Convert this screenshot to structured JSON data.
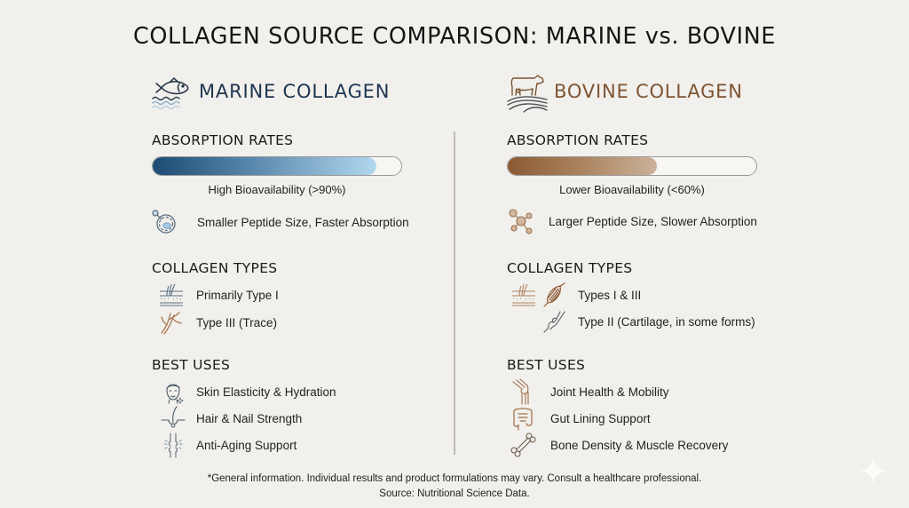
{
  "title": "COLLAGEN SOURCE COMPARISON: MARINE vs. BOVINE",
  "colors": {
    "background": "#f1f0ec",
    "marine_accent": "#1d4a72",
    "marine_light": "#b2d8ef",
    "bovine_accent": "#8a5a33",
    "bovine_light": "#cbb29a",
    "divider": "#bdbbb6"
  },
  "marine": {
    "name": "MARINE COLLAGEN",
    "icon": "fish-waves-icon",
    "absorption": {
      "heading": "ABSORPTION RATES",
      "bar_percent": 90,
      "caption": "High Bioavailability (>90%)",
      "detail_icon": "peptide-cell-icon",
      "detail": "Smaller Peptide Size, Faster Absorption"
    },
    "types": {
      "heading": "COLLAGEN TYPES",
      "items": [
        {
          "icon": "skin-layers-icon",
          "label": "Primarily Type I"
        },
        {
          "icon": "blood-vessel-icon",
          "label": "Type III (Trace)"
        }
      ]
    },
    "uses": {
      "heading": "BEST USES",
      "items": [
        {
          "icon": "face-icon",
          "label": "Skin Elasticity & Hydration"
        },
        {
          "icon": "hair-follicle-icon",
          "label": "Hair & Nail Strength"
        },
        {
          "icon": "joint-sparkle-icon",
          "label": "Anti-Aging Support"
        }
      ]
    }
  },
  "bovine": {
    "name": "BOVINE COLLAGEN",
    "icon": "cow-field-icon",
    "absorption": {
      "heading": "ABSORPTION RATES",
      "bar_percent": 60,
      "caption": "Lower Bioavailability (<60%)",
      "detail_icon": "molecule-icon",
      "detail": "Larger Peptide Size, Slower Absorption"
    },
    "types": {
      "heading": "COLLAGEN TYPES",
      "items": [
        {
          "icon": "skin-muscle-icon",
          "label": "Types I & III"
        },
        {
          "icon": "cartilage-icon",
          "label": "Type II (Cartilage, in some forms)"
        }
      ]
    },
    "uses": {
      "heading": "BEST USES",
      "items": [
        {
          "icon": "knee-joint-icon",
          "label": "Joint Health & Mobility"
        },
        {
          "icon": "intestine-icon",
          "label": "Gut Lining Support"
        },
        {
          "icon": "bone-icon",
          "label": "Bone Density & Muscle Recovery"
        }
      ]
    }
  },
  "footer": {
    "disclaimer": "*General information. Individual results and product formulations may vary. Consult a healthcare professional.",
    "source": "Source: Nutritional Science Data."
  }
}
